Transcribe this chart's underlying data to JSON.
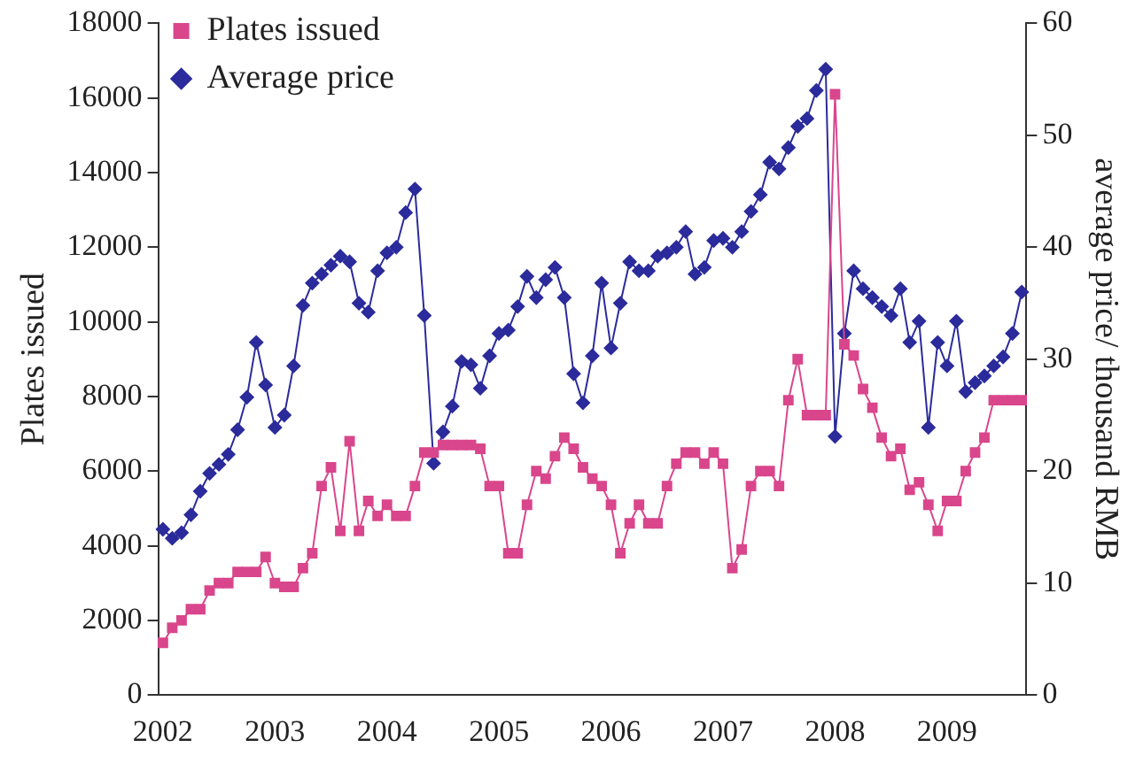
{
  "chart_data": {
    "type": "line",
    "xlabel": null,
    "ylabel": "Plates issued",
    "y2label": "average price/ thousand RMB",
    "categories": [
      "2002",
      null,
      null,
      null,
      null,
      null,
      null,
      null,
      null,
      null,
      null,
      null,
      "2003",
      null,
      null,
      null,
      null,
      null,
      null,
      null,
      null,
      null,
      null,
      null,
      "2004",
      null,
      null,
      null,
      null,
      null,
      null,
      null,
      null,
      null,
      null,
      null,
      "2005",
      null,
      null,
      null,
      null,
      null,
      null,
      null,
      null,
      null,
      null,
      null,
      "2006",
      null,
      null,
      null,
      null,
      null,
      null,
      null,
      null,
      null,
      null,
      null,
      "2007",
      null,
      null,
      null,
      null,
      null,
      null,
      null,
      null,
      null,
      null,
      null,
      "2008",
      null,
      null,
      null,
      null,
      null,
      null,
      null,
      null,
      null,
      null,
      null,
      "2009",
      null,
      null,
      null,
      null,
      null,
      null,
      null,
      null
    ],
    "series": [
      {
        "name": "Plates issued",
        "color": "#d9468c",
        "marker": "square",
        "values": [
          1400,
          1800,
          2000,
          2300,
          2300,
          2800,
          3000,
          3000,
          3300,
          3300,
          3300,
          3700,
          3000,
          2900,
          2900,
          3400,
          3800,
          5600,
          6100,
          4400,
          6800,
          4400,
          5200,
          4800,
          5100,
          4800,
          4800,
          5600,
          6500,
          6500,
          6700,
          6700,
          6700,
          6700,
          6600,
          5600,
          5600,
          3800,
          3800,
          5100,
          6000,
          5800,
          6400,
          6900,
          6600,
          6100,
          5800,
          5600,
          5100,
          3800,
          4600,
          5100,
          4600,
          4600,
          5600,
          6200,
          6500,
          6500,
          6200,
          6500,
          6200,
          3400,
          3900,
          5600,
          6000,
          6000,
          5600,
          7900,
          9000,
          7500,
          7500,
          7500,
          16100,
          9400,
          9100,
          8200,
          7700,
          6900,
          6400,
          6600,
          5500,
          5700,
          5100,
          4400,
          5200,
          5200,
          6000,
          6500,
          6900,
          7900,
          7900,
          7900,
          7900
        ]
      },
      {
        "name": "Average price",
        "color": "#2b2b9c",
        "marker": "diamond",
        "axis": "y2",
        "values": [
          14.8,
          14.0,
          14.5,
          16.1,
          18.2,
          19.8,
          20.6,
          21.5,
          23.7,
          26.6,
          31.5,
          27.7,
          23.9,
          25.0,
          29.4,
          34.8,
          36.8,
          37.6,
          38.4,
          39.2,
          38.7,
          35.0,
          34.2,
          37.9,
          39.5,
          40.0,
          43.1,
          45.2,
          33.9,
          20.7,
          23.5,
          25.8,
          29.8,
          29.5,
          27.4,
          30.3,
          32.3,
          32.6,
          34.7,
          37.4,
          35.5,
          37.1,
          38.2,
          35.5,
          28.7,
          26.1,
          30.3,
          36.8,
          31.0,
          35.0,
          38.7,
          37.9,
          37.9,
          39.2,
          39.5,
          40.0,
          41.4,
          37.6,
          38.2,
          40.6,
          40.8,
          40.0,
          41.4,
          43.2,
          44.7,
          47.6,
          47.0,
          48.9,
          50.8,
          51.5,
          54.0,
          55.9,
          23.1,
          32.3,
          37.9,
          36.3,
          35.5,
          34.7,
          33.9,
          36.3,
          31.5,
          33.4,
          23.9,
          31.5,
          29.4,
          33.4,
          27.1,
          27.9,
          28.5,
          29.4,
          30.2,
          32.3,
          36.0
        ]
      }
    ],
    "ylim": [
      0,
      18000
    ],
    "yticks": [
      0,
      2000,
      4000,
      6000,
      8000,
      10000,
      12000,
      14000,
      16000,
      18000
    ],
    "y2lim": [
      0,
      60
    ],
    "y2ticks": [
      0,
      10,
      20,
      30,
      40,
      50,
      60
    ],
    "grid": false,
    "legend": "top left",
    "line_style": "solid"
  }
}
